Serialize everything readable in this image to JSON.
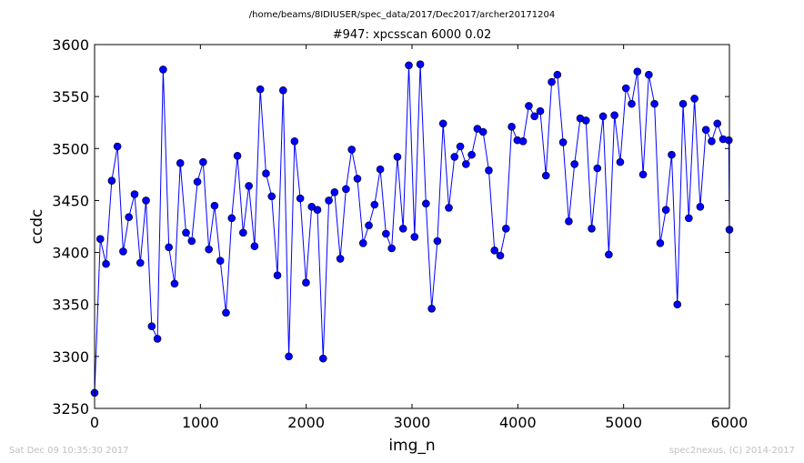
{
  "chart_data": {
    "type": "line",
    "suptitle": "/home/beams/8IDIUSER/spec_data/2017/Dec2017/archer20171204",
    "title": "#947: xpcsscan 6000 0.02",
    "xlabel": "img_n",
    "ylabel": "ccdc",
    "xlim": [
      0,
      6000
    ],
    "ylim": [
      3250,
      3600
    ],
    "xticks": [
      "0",
      "1000",
      "2000",
      "3000",
      "4000",
      "5000",
      "6000"
    ],
    "yticks": [
      "3250",
      "3300",
      "3350",
      "3400",
      "3450",
      "3500",
      "3550",
      "3600"
    ],
    "grid": false,
    "legend": "none",
    "color": "#0000ff",
    "marker": "circle",
    "series": [
      {
        "x": [
          0,
          54,
          108,
          162,
          216,
          270,
          324,
          378,
          432,
          486,
          540,
          594,
          648,
          702,
          756,
          810,
          864,
          918,
          972,
          1026,
          1080,
          1134,
          1188,
          1242,
          1296,
          1350,
          1404,
          1458,
          1512,
          1566,
          1620,
          1674,
          1728,
          1782,
          1836,
          1890,
          1944,
          1998,
          2052,
          2106,
          2160,
          2214,
          2268,
          2322,
          2376,
          2430,
          2484,
          2538,
          2592,
          2646,
          2700,
          2754,
          2808,
          2862,
          2916,
          2970,
          3024,
          3078,
          3132,
          3186,
          3240,
          3294,
          3348,
          3402,
          3456,
          3510,
          3564,
          3618,
          3672,
          3726,
          3780,
          3834,
          3888,
          3942,
          3996,
          4050,
          4104,
          4158,
          4212,
          4266,
          4320,
          4374,
          4428,
          4482,
          4536,
          4590,
          4644,
          4698,
          4752,
          4806,
          4860,
          4914,
          4968,
          5022,
          5076,
          5130,
          5184,
          5238,
          5292,
          5346,
          5400,
          5454,
          5508,
          5562,
          5616,
          5670,
          5724,
          5778,
          5832,
          5886,
          5940,
          5994,
          6000
        ],
        "y": [
          3265,
          3413,
          3389,
          3469,
          3502,
          3401,
          3434,
          3456,
          3390,
          3450,
          3329,
          3317,
          3576,
          3405,
          3370,
          3486,
          3419,
          3411,
          3468,
          3487,
          3403,
          3445,
          3392,
          3342,
          3433,
          3493,
          3419,
          3464,
          3406,
          3557,
          3476,
          3454,
          3378,
          3556,
          3300,
          3507,
          3452,
          3371,
          3444,
          3441,
          3298,
          3450,
          3458,
          3394,
          3461,
          3499,
          3471,
          3409,
          3426,
          3446,
          3480,
          3418,
          3404,
          3492,
          3423,
          3580,
          3415,
          3581,
          3447,
          3346,
          3411,
          3524,
          3443,
          3492,
          3502,
          3485,
          3494,
          3519,
          3516,
          3479,
          3402,
          3397,
          3423,
          3521,
          3508,
          3507,
          3541,
          3531,
          3536,
          3474,
          3564,
          3571,
          3506,
          3430,
          3485,
          3529,
          3527,
          3423,
          3481,
          3531,
          3398,
          3532,
          3487,
          3558,
          3543,
          3574,
          3475,
          3571,
          3543,
          3409,
          3441,
          3494,
          3350,
          3543,
          3433,
          3548,
          3444,
          3518,
          3507,
          3524,
          3509,
          3508,
          3422
        ]
      }
    ]
  },
  "footer": {
    "left": "Sat Dec 09 10:35:30 2017",
    "right": "spec2nexus, (C) 2014-2017"
  }
}
